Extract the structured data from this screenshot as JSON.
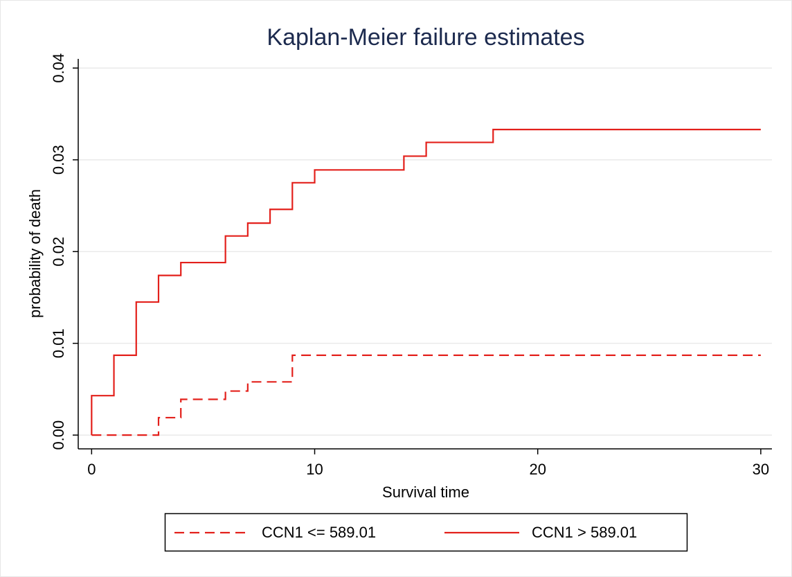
{
  "chart_data": {
    "type": "line",
    "step": "post",
    "title": "Kaplan-Meier failure estimates",
    "x_label": "Survival time",
    "y_label": "probability of death",
    "series": [
      {
        "name": "CCN1 <= 589.01",
        "color": "#e3201b",
        "dash": true,
        "x": [
          0,
          3,
          4,
          6,
          7,
          9,
          30
        ],
        "values": [
          0,
          0.0019,
          0.0039,
          0.0048,
          0.0058,
          0.0087,
          0.0087
        ]
      },
      {
        "name": "CCN1 > 589.01",
        "color": "#e3201b",
        "dash": false,
        "x": [
          0,
          0,
          1,
          2,
          3,
          4,
          6,
          7,
          8,
          9,
          10,
          14,
          15,
          18,
          30
        ],
        "values": [
          0,
          0.0043,
          0.0087,
          0.0145,
          0.0174,
          0.0188,
          0.0217,
          0.0231,
          0.0246,
          0.0275,
          0.0289,
          0.0304,
          0.0319,
          0.0333,
          0.0333
        ]
      }
    ],
    "xlim": [
      -0.6,
      30.5
    ],
    "xticks": [
      0,
      10,
      20,
      30
    ],
    "ylim": [
      -0.0015,
      0.041
    ],
    "yticks": [
      {
        "value": 0,
        "label": "0.00"
      },
      0.01,
      0.02,
      0.03,
      0.04
    ],
    "grid": true,
    "legend": "bottom"
  }
}
